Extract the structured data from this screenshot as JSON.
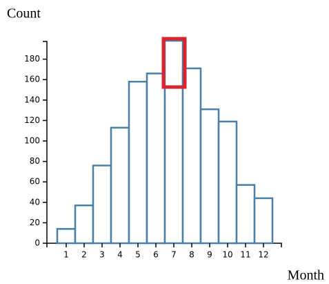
{
  "chart_data": {
    "type": "bar",
    "x_label": "Month",
    "y_label": "Count",
    "categories": [
      "1",
      "2",
      "3",
      "4",
      "5",
      "6",
      "7",
      "8",
      "9",
      "10",
      "11",
      "12"
    ],
    "values": [
      14,
      37,
      76,
      113,
      158,
      166,
      198,
      171,
      131,
      119,
      57,
      44
    ],
    "color": "#4a7fa8",
    "ylim": [
      0,
      198
    ],
    "yticks": [
      0,
      20,
      40,
      60,
      80,
      100,
      120,
      140,
      160,
      180
    ]
  }
}
